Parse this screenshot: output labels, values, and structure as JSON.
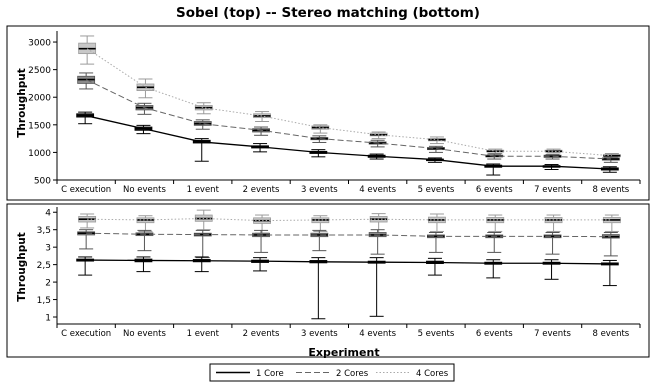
{
  "chart_data": [
    {
      "type": "box",
      "title": "Sobel (top) -- Stereo matching (bottom)",
      "ylabel": "Throughput",
      "xlabel": "",
      "categories": [
        "C execution",
        "No events",
        "1 event",
        "2 events",
        "3 events",
        "4 events",
        "5 events",
        "6 events",
        "7 events",
        "8 events"
      ],
      "ylim": [
        500,
        3200
      ],
      "yticks": [
        500,
        1000,
        1500,
        2000,
        2500,
        3000
      ],
      "series": [
        {
          "name": "1 Core",
          "color": "#000000",
          "line": "solid",
          "boxes": [
            {
              "min": 1520,
              "q1": 1640,
              "median": 1670,
              "q3": 1700,
              "max": 1730
            },
            {
              "min": 1340,
              "q1": 1400,
              "median": 1430,
              "q3": 1460,
              "max": 1490
            },
            {
              "min": 840,
              "q1": 1170,
              "median": 1190,
              "q3": 1220,
              "max": 1250
            },
            {
              "min": 1010,
              "q1": 1080,
              "median": 1100,
              "q3": 1120,
              "max": 1160
            },
            {
              "min": 920,
              "q1": 980,
              "median": 1000,
              "q3": 1020,
              "max": 1050
            },
            {
              "min": 880,
              "q1": 910,
              "median": 930,
              "q3": 950,
              "max": 970
            },
            {
              "min": 820,
              "q1": 850,
              "median": 870,
              "q3": 880,
              "max": 900
            },
            {
              "min": 590,
              "q1": 730,
              "median": 750,
              "q3": 770,
              "max": 790
            },
            {
              "min": 690,
              "q1": 730,
              "median": 750,
              "q3": 760,
              "max": 780
            },
            {
              "min": 640,
              "q1": 680,
              "median": 700,
              "q3": 720,
              "max": 740
            }
          ]
        },
        {
          "name": "2 Cores",
          "color": "#666666",
          "line": "dashed",
          "boxes": [
            {
              "min": 2150,
              "q1": 2250,
              "median": 2320,
              "q3": 2380,
              "max": 2440
            },
            {
              "min": 1690,
              "q1": 1770,
              "median": 1810,
              "q3": 1850,
              "max": 1890
            },
            {
              "min": 1420,
              "q1": 1490,
              "median": 1520,
              "q3": 1560,
              "max": 1590
            },
            {
              "min": 1310,
              "q1": 1370,
              "median": 1400,
              "q3": 1430,
              "max": 1460
            },
            {
              "min": 1180,
              "q1": 1230,
              "median": 1250,
              "q3": 1270,
              "max": 1300
            },
            {
              "min": 1100,
              "q1": 1150,
              "median": 1170,
              "q3": 1190,
              "max": 1220
            },
            {
              "min": 1000,
              "q1": 1050,
              "median": 1070,
              "q3": 1090,
              "max": 1110
            },
            {
              "min": 880,
              "q1": 920,
              "median": 930,
              "q3": 950,
              "max": 970
            },
            {
              "min": 880,
              "q1": 910,
              "median": 930,
              "q3": 950,
              "max": 960
            },
            {
              "min": 820,
              "q1": 860,
              "median": 880,
              "q3": 900,
              "max": 920
            }
          ]
        },
        {
          "name": "4 Cores",
          "color": "#aaaaaa",
          "line": "dotted",
          "boxes": [
            {
              "min": 2600,
              "q1": 2790,
              "median": 2880,
              "q3": 2980,
              "max": 3110
            },
            {
              "min": 1990,
              "q1": 2120,
              "median": 2180,
              "q3": 2240,
              "max": 2330
            },
            {
              "min": 1700,
              "q1": 1770,
              "median": 1810,
              "q3": 1850,
              "max": 1900
            },
            {
              "min": 1560,
              "q1": 1630,
              "median": 1660,
              "q3": 1700,
              "max": 1740
            },
            {
              "min": 1350,
              "q1": 1420,
              "median": 1450,
              "q3": 1480,
              "max": 1500
            },
            {
              "min": 1250,
              "q1": 1300,
              "median": 1320,
              "q3": 1350,
              "max": 1370
            },
            {
              "min": 1160,
              "q1": 1210,
              "median": 1230,
              "q3": 1250,
              "max": 1280
            },
            {
              "min": 980,
              "q1": 1010,
              "median": 1020,
              "q3": 1040,
              "max": 1060
            },
            {
              "min": 990,
              "q1": 1010,
              "median": 1020,
              "q3": 1040,
              "max": 1060
            },
            {
              "min": 880,
              "q1": 920,
              "median": 940,
              "q3": 960,
              "max": 980
            }
          ]
        }
      ]
    },
    {
      "type": "box",
      "title": "",
      "ylabel": "Throughput",
      "xlabel": "Experiment",
      "categories": [
        "C execution",
        "No events",
        "1 event",
        "2 events",
        "3 events",
        "4 events",
        "5 events",
        "6 events",
        "7 events",
        "8 events"
      ],
      "ylim": [
        0.8,
        4.15
      ],
      "yticks": [
        1,
        1.5,
        2,
        2.5,
        3,
        3.5,
        4
      ],
      "ytick_labels": [
        "1",
        "1,5",
        "2",
        "2,5",
        "3",
        "3,5",
        "4"
      ],
      "series": [
        {
          "name": "1 Core",
          "color": "#000000",
          "line": "solid",
          "boxes": [
            {
              "min": 2.2,
              "q1": 2.6,
              "median": 2.63,
              "q3": 2.66,
              "max": 2.72
            },
            {
              "min": 2.3,
              "q1": 2.58,
              "median": 2.62,
              "q3": 2.66,
              "max": 2.72
            },
            {
              "min": 2.3,
              "q1": 2.58,
              "median": 2.61,
              "q3": 2.65,
              "max": 2.72
            },
            {
              "min": 2.32,
              "q1": 2.56,
              "median": 2.6,
              "q3": 2.63,
              "max": 2.7
            },
            {
              "min": 0.95,
              "q1": 2.55,
              "median": 2.58,
              "q3": 2.62,
              "max": 2.7
            },
            {
              "min": 1.02,
              "q1": 2.54,
              "median": 2.57,
              "q3": 2.6,
              "max": 2.7
            },
            {
              "min": 2.2,
              "q1": 2.53,
              "median": 2.56,
              "q3": 2.6,
              "max": 2.68
            },
            {
              "min": 2.12,
              "q1": 2.51,
              "median": 2.54,
              "q3": 2.57,
              "max": 2.64
            },
            {
              "min": 2.08,
              "q1": 2.51,
              "median": 2.54,
              "q3": 2.57,
              "max": 2.64
            },
            {
              "min": 1.9,
              "q1": 2.49,
              "median": 2.52,
              "q3": 2.55,
              "max": 2.62
            }
          ]
        },
        {
          "name": "2 Cores",
          "color": "#666666",
          "line": "dashed",
          "boxes": [
            {
              "min": 2.95,
              "q1": 3.35,
              "median": 3.4,
              "q3": 3.44,
              "max": 3.5
            },
            {
              "min": 2.9,
              "q1": 3.33,
              "median": 3.37,
              "q3": 3.41,
              "max": 3.48
            },
            {
              "min": 2.7,
              "q1": 3.32,
              "median": 3.36,
              "q3": 3.4,
              "max": 3.48
            },
            {
              "min": 2.85,
              "q1": 3.3,
              "median": 3.35,
              "q3": 3.4,
              "max": 3.48
            },
            {
              "min": 2.9,
              "q1": 3.3,
              "median": 3.35,
              "q3": 3.4,
              "max": 3.48
            },
            {
              "min": 2.8,
              "q1": 3.3,
              "median": 3.35,
              "q3": 3.42,
              "max": 3.5
            },
            {
              "min": 2.85,
              "q1": 3.27,
              "median": 3.31,
              "q3": 3.35,
              "max": 3.42
            },
            {
              "min": 2.85,
              "q1": 3.27,
              "median": 3.31,
              "q3": 3.35,
              "max": 3.42
            },
            {
              "min": 2.8,
              "q1": 3.27,
              "median": 3.31,
              "q3": 3.35,
              "max": 3.42
            },
            {
              "min": 2.75,
              "q1": 3.26,
              "median": 3.3,
              "q3": 3.36,
              "max": 3.42
            }
          ]
        },
        {
          "name": "4 Cores",
          "color": "#aaaaaa",
          "line": "dotted",
          "boxes": [
            {
              "min": 3.55,
              "q1": 3.72,
              "median": 3.8,
              "q3": 3.88,
              "max": 3.95
            },
            {
              "min": 3.45,
              "q1": 3.7,
              "median": 3.78,
              "q3": 3.84,
              "max": 3.9
            },
            {
              "min": 3.5,
              "q1": 3.74,
              "median": 3.82,
              "q3": 3.92,
              "max": 4.06
            },
            {
              "min": 3.4,
              "q1": 3.68,
              "median": 3.76,
              "q3": 3.84,
              "max": 3.92
            },
            {
              "min": 3.45,
              "q1": 3.7,
              "median": 3.78,
              "q3": 3.84,
              "max": 3.9
            },
            {
              "min": 3.4,
              "q1": 3.72,
              "median": 3.8,
              "q3": 3.88,
              "max": 3.96
            },
            {
              "min": 3.45,
              "q1": 3.7,
              "median": 3.78,
              "q3": 3.86,
              "max": 3.95
            },
            {
              "min": 3.45,
              "q1": 3.7,
              "median": 3.78,
              "q3": 3.85,
              "max": 3.92
            },
            {
              "min": 3.45,
              "q1": 3.7,
              "median": 3.78,
              "q3": 3.85,
              "max": 3.92
            },
            {
              "min": 3.45,
              "q1": 3.7,
              "median": 3.78,
              "q3": 3.85,
              "max": 3.92
            }
          ]
        }
      ]
    }
  ],
  "legend": {
    "placement": "bottom-center",
    "entries": [
      {
        "label": "1 Core",
        "color": "#000000",
        "line": "solid"
      },
      {
        "label": "2 Cores",
        "color": "#666666",
        "line": "dashed"
      },
      {
        "label": "4 Cores",
        "color": "#aaaaaa",
        "line": "dotted"
      }
    ]
  }
}
